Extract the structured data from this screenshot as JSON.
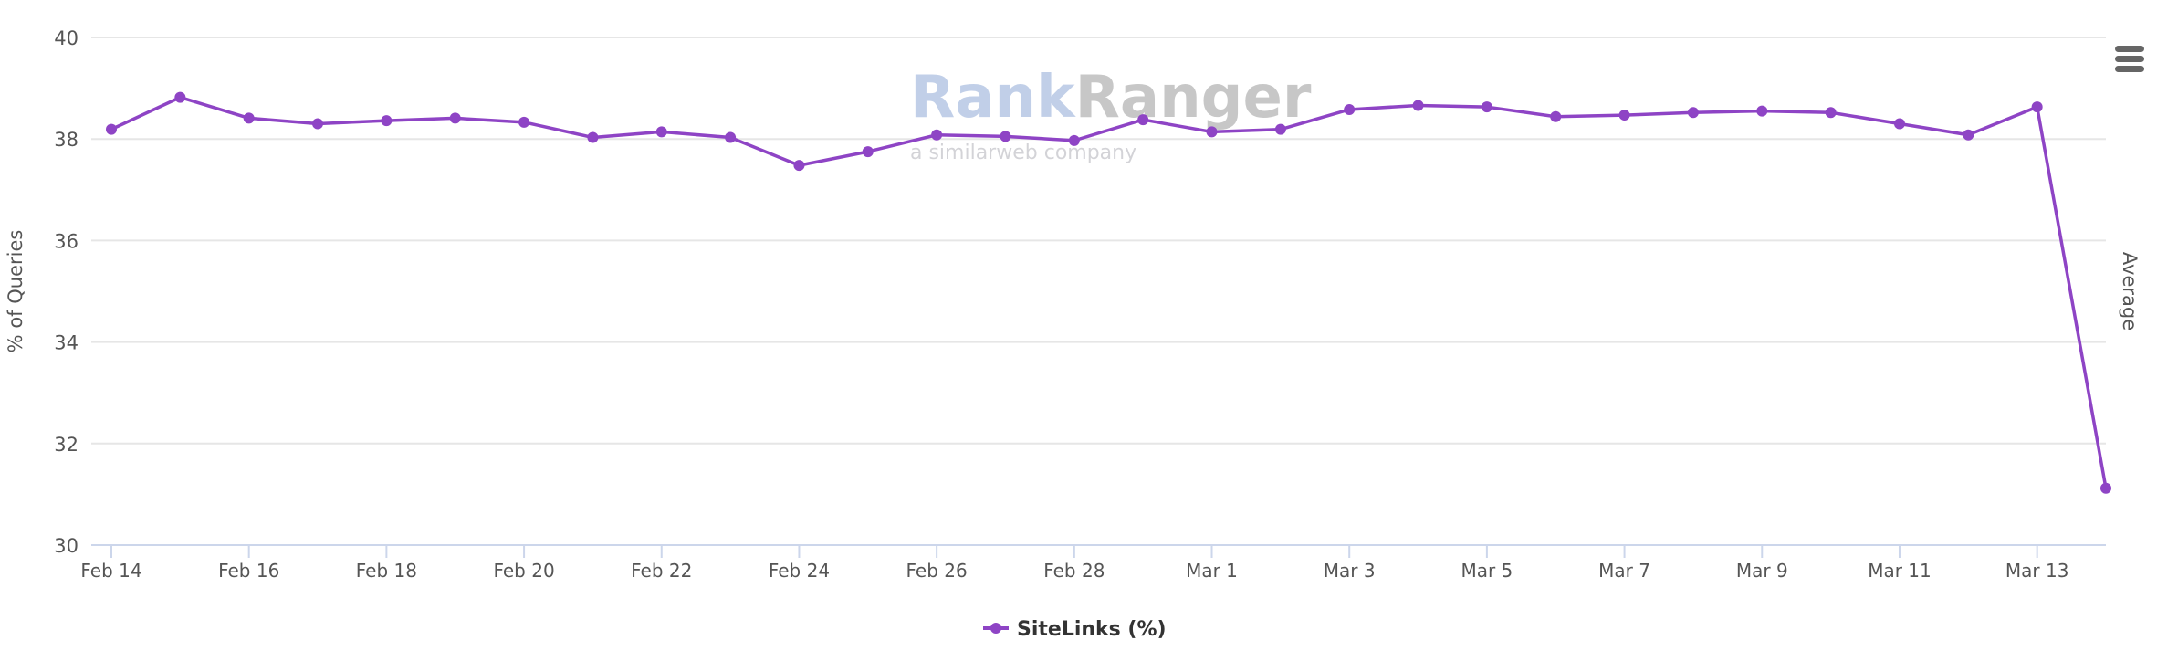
{
  "chart_data": {
    "type": "line",
    "title": "",
    "xlabel": "",
    "ylabel": "% of Queries",
    "y2label": "Average",
    "ylim": [
      30,
      40
    ],
    "yticks": [
      30,
      32,
      34,
      36,
      38,
      40
    ],
    "grid": true,
    "legend_position": "bottom-center",
    "x": [
      "Feb 14",
      "Feb 15",
      "Feb 16",
      "Feb 17",
      "Feb 18",
      "Feb 19",
      "Feb 20",
      "Feb 21",
      "Feb 22",
      "Feb 23",
      "Feb 24",
      "Feb 25",
      "Feb 26",
      "Feb 27",
      "Feb 28",
      "Feb 29",
      "Mar 1",
      "Mar 2",
      "Mar 3",
      "Mar 4",
      "Mar 5",
      "Mar 6",
      "Mar 7",
      "Mar 8",
      "Mar 9",
      "Mar 10",
      "Mar 11",
      "Mar 12",
      "Mar 13",
      "Mar 14"
    ],
    "xtick_labels": [
      "Feb 14",
      "Feb 16",
      "Feb 18",
      "Feb 20",
      "Feb 22",
      "Feb 24",
      "Feb 26",
      "Feb 28",
      "Mar 1",
      "Mar 3",
      "Mar 5",
      "Mar 7",
      "Mar 9",
      "Mar 11",
      "Mar 13"
    ],
    "series": [
      {
        "name": "SiteLinks (%)",
        "color": "#8e44c5",
        "values": [
          38.19,
          38.82,
          38.41,
          38.3,
          38.36,
          38.41,
          38.33,
          38.03,
          38.14,
          38.03,
          37.48,
          37.75,
          38.08,
          38.05,
          37.97,
          38.38,
          38.14,
          38.19,
          38.58,
          38.66,
          38.63,
          38.44,
          38.47,
          38.52,
          38.55,
          38.52,
          38.3,
          38.08,
          38.63,
          31.12
        ]
      }
    ]
  },
  "watermark": {
    "brand_a": "Rank",
    "brand_b": "Ranger",
    "tagline": "a similarweb company"
  },
  "menu": {
    "icon": "hamburger-menu-icon"
  }
}
